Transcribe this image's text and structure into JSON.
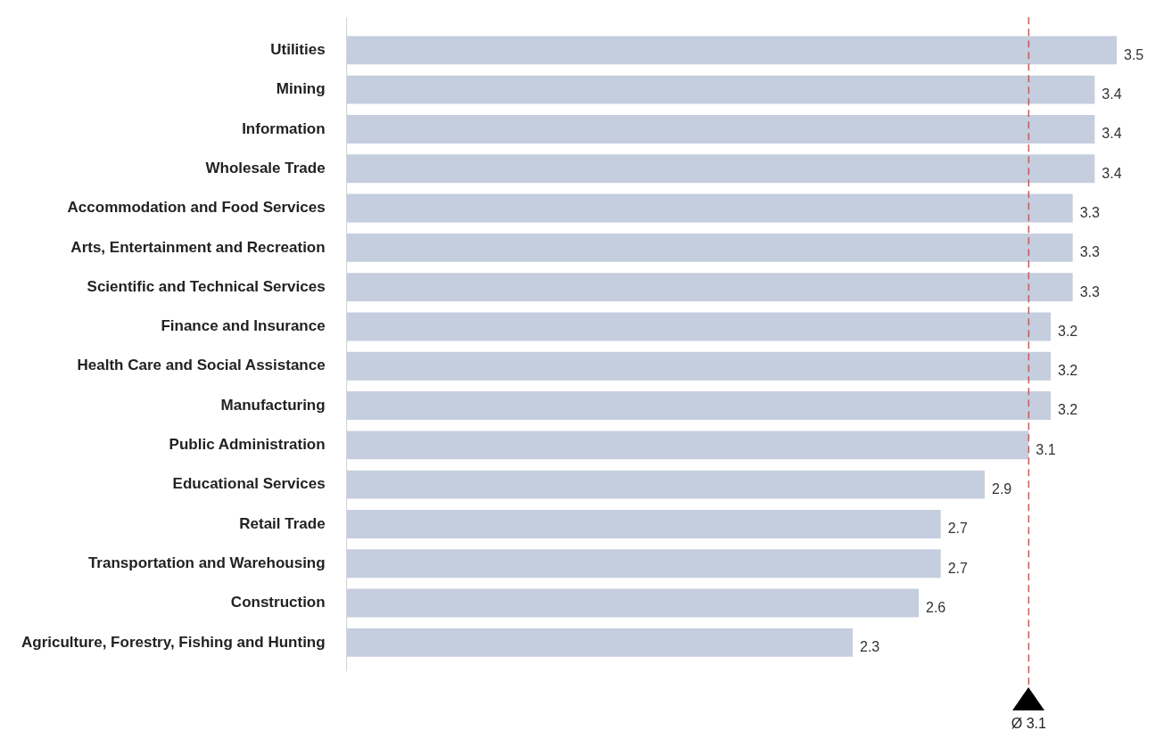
{
  "chart_data": {
    "type": "bar",
    "orientation": "horizontal",
    "categories": [
      "Utilities",
      "Mining",
      "Information",
      "Wholesale Trade",
      "Accommodation and Food Services",
      "Arts, Entertainment and Recreation",
      "Scientific and Technical Services",
      "Finance and Insurance",
      "Health Care and Social Assistance",
      "Manufacturing",
      "Public Administration",
      "Educational Services",
      "Retail Trade",
      "Transportation and Warehousing",
      "Construction",
      "Agriculture, Forestry, Fishing and Hunting"
    ],
    "values": [
      3.5,
      3.4,
      3.4,
      3.4,
      3.3,
      3.3,
      3.3,
      3.2,
      3.2,
      3.2,
      3.1,
      2.9,
      2.7,
      2.7,
      2.6,
      2.3
    ],
    "color": "#c5cedf",
    "tick_labels": "y",
    "data_labels": true,
    "grid": false,
    "legend": false,
    "ref_lines": [
      {
        "axis": "x",
        "value": 3.1,
        "label": "Ø 3.1",
        "color": "#d9534f",
        "line_style": "dashed"
      }
    ]
  }
}
